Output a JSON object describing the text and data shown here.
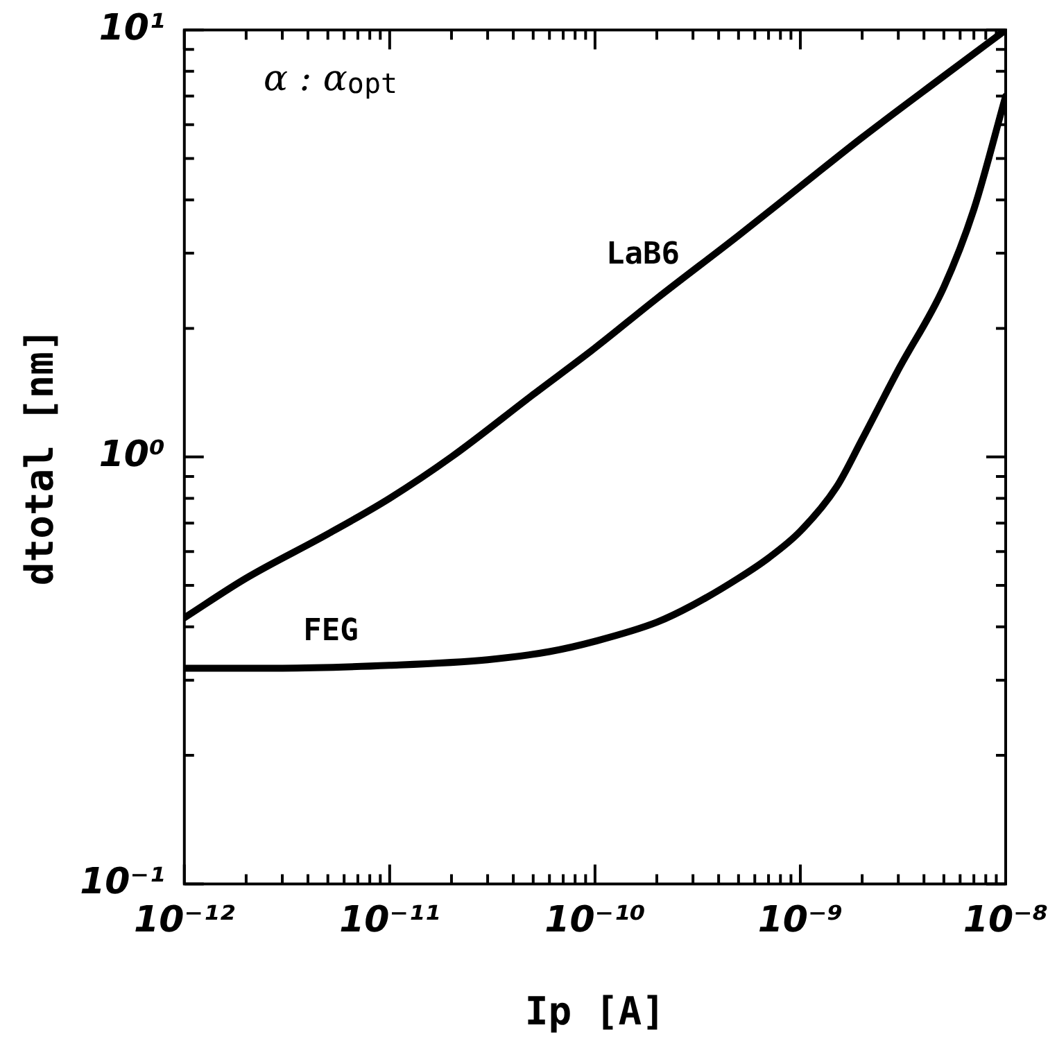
{
  "chart_data": {
    "type": "line",
    "xlabel": "Ip [A]",
    "ylabel": "dtotal [nm]",
    "annotations": [
      "α : α$_{opt}$"
    ],
    "log": "xy",
    "grid": false,
    "legend": false,
    "marker": "none",
    "line_style": "solid",
    "xlim": [
      1e-12,
      1e-08
    ],
    "ylim": [
      0.1,
      10
    ],
    "xticks": [
      {
        "value": 1e-12,
        "label": "10⁻¹²"
      },
      {
        "value": 2e-12,
        "label": null
      },
      {
        "value": 3e-12,
        "label": null
      },
      {
        "value": 4e-12,
        "label": null
      },
      {
        "value": 5e-12,
        "label": null
      },
      {
        "value": 6e-12,
        "label": null
      },
      {
        "value": 7e-12,
        "label": null
      },
      {
        "value": 8e-12,
        "label": null
      },
      {
        "value": 9e-12,
        "label": null
      },
      {
        "value": 1e-11,
        "label": "10⁻¹¹"
      },
      {
        "value": 2e-11,
        "label": null
      },
      {
        "value": 3e-11,
        "label": null
      },
      {
        "value": 4e-11,
        "label": null
      },
      {
        "value": 5e-11,
        "label": null
      },
      {
        "value": 6e-11,
        "label": null
      },
      {
        "value": 7e-11,
        "label": null
      },
      {
        "value": 8e-11,
        "label": null
      },
      {
        "value": 9e-11,
        "label": null
      },
      {
        "value": 1e-10,
        "label": "10⁻¹⁰"
      },
      {
        "value": 2e-10,
        "label": null
      },
      {
        "value": 3e-10,
        "label": null
      },
      {
        "value": 4e-10,
        "label": null
      },
      {
        "value": 5e-10,
        "label": null
      },
      {
        "value": 6e-10,
        "label": null
      },
      {
        "value": 7e-10,
        "label": null
      },
      {
        "value": 8e-10,
        "label": null
      },
      {
        "value": 9e-10,
        "label": null
      },
      {
        "value": 1e-09,
        "label": "10⁻⁹"
      },
      {
        "value": 2e-09,
        "label": null
      },
      {
        "value": 3e-09,
        "label": null
      },
      {
        "value": 4e-09,
        "label": null
      },
      {
        "value": 5e-09,
        "label": null
      },
      {
        "value": 6e-09,
        "label": null
      },
      {
        "value": 7e-09,
        "label": null
      },
      {
        "value": 8e-09,
        "label": null
      },
      {
        "value": 9e-09,
        "label": null
      },
      {
        "value": 1e-08,
        "label": "10⁻⁸"
      }
    ],
    "yticks": [
      {
        "value": 0.1,
        "label": "10⁻¹"
      },
      {
        "value": 0.2,
        "label": null
      },
      {
        "value": 0.3,
        "label": null
      },
      {
        "value": 0.4,
        "label": null
      },
      {
        "value": 0.5,
        "label": null
      },
      {
        "value": 0.6,
        "label": null
      },
      {
        "value": 0.7,
        "label": null
      },
      {
        "value": 0.8,
        "label": null
      },
      {
        "value": 0.9,
        "label": null
      },
      {
        "value": 1,
        "label": "10⁰"
      },
      {
        "value": 2,
        "label": null
      },
      {
        "value": 3,
        "label": null
      },
      {
        "value": 4,
        "label": null
      },
      {
        "value": 5,
        "label": null
      },
      {
        "value": 6,
        "label": null
      },
      {
        "value": 7,
        "label": null
      },
      {
        "value": 8,
        "label": null
      },
      {
        "value": 9,
        "label": null
      },
      {
        "value": 10,
        "label": "10¹"
      }
    ],
    "series": [
      {
        "name": "LaB6",
        "color": "#000000",
        "x": [
          1e-12,
          2e-12,
          5e-12,
          1e-11,
          2e-11,
          5e-11,
          1e-10,
          2e-10,
          5e-10,
          1e-09,
          2e-09,
          5e-09,
          1e-08
        ],
        "values": [
          0.42,
          0.52,
          0.66,
          0.8,
          1.0,
          1.4,
          1.8,
          2.35,
          3.3,
          4.3,
          5.6,
          7.8,
          10
        ]
      },
      {
        "name": "FEG",
        "color": "#000000",
        "x": [
          1e-12,
          3e-12,
          1e-11,
          3e-11,
          6e-11,
          1e-10,
          2e-10,
          3e-10,
          5e-10,
          7e-10,
          1e-09,
          1.5e-09,
          2e-09,
          3e-09,
          5e-09,
          7e-09,
          1e-08
        ],
        "values": [
          0.32,
          0.32,
          0.325,
          0.335,
          0.35,
          0.37,
          0.41,
          0.45,
          0.52,
          0.58,
          0.67,
          0.85,
          1.1,
          1.6,
          2.5,
          3.8,
          7
        ]
      }
    ]
  }
}
